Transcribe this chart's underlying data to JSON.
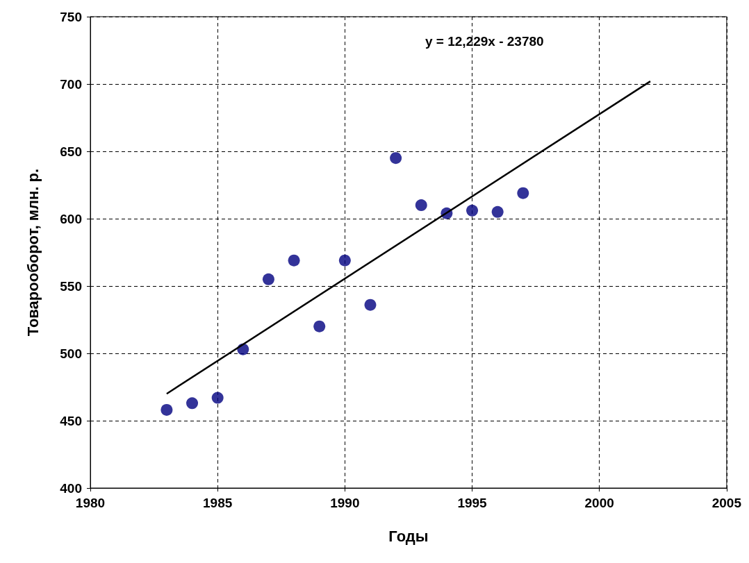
{
  "chart_data": {
    "type": "scatter",
    "xlabel": "Годы",
    "ylabel": "Товарооборот, млн. р.",
    "annotations": [
      "y = 12,229x - 23780"
    ],
    "xlim": [
      1980,
      2005
    ],
    "xticks": [
      1980,
      1985,
      1990,
      1995,
      2000,
      2005
    ],
    "ylim": [
      400,
      750
    ],
    "yticks": [
      400,
      450,
      500,
      550,
      600,
      650,
      700,
      750
    ],
    "grid": true,
    "series": [
      {
        "marker": "circle",
        "color": "#000080",
        "x": [
          1983,
          1984,
          1985,
          1986,
          1987,
          1988,
          1989,
          1990,
          1991,
          1992,
          1993,
          1994,
          1995,
          1996,
          1997
        ],
        "values": [
          458,
          463,
          467,
          503,
          555,
          569,
          520,
          569,
          536,
          645,
          610,
          604,
          606,
          605,
          619
        ]
      },
      {
        "type": "line",
        "marker": "none",
        "color": "#000000",
        "line_style": "solid",
        "x": [
          1983,
          2002
        ],
        "values": [
          470,
          702
        ]
      }
    ]
  }
}
